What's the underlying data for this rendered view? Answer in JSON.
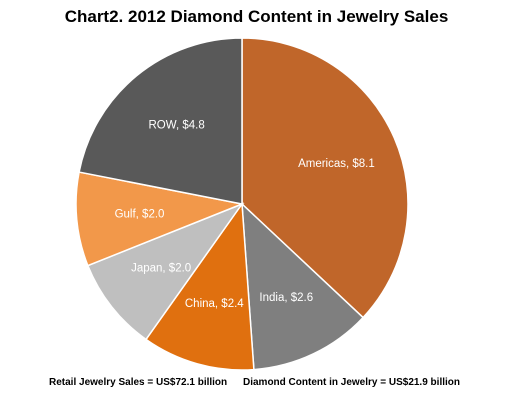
{
  "chart_data": {
    "type": "pie",
    "title": "Chart2. 2012 Diamond Content in Jewelry Sales",
    "slices": [
      {
        "label": "Americas, $8.1",
        "name": "Americas",
        "value": 8.1,
        "color": "#C0662A",
        "text_color": "#ffffff"
      },
      {
        "label": "India, $2.6",
        "name": "India",
        "value": 2.6,
        "color": "#7F7F7F",
        "text_color": "#ffffff"
      },
      {
        "label": "China, $2.4",
        "name": "China",
        "value": 2.4,
        "color": "#E0700F",
        "text_color": "#ffffff"
      },
      {
        "label": "Japan, $2.0",
        "name": "Japan",
        "value": 2.0,
        "color": "#BFBFBF",
        "text_color": "#ffffff"
      },
      {
        "label": "Gulf, $2.0",
        "name": "Gulf",
        "value": 2.0,
        "color": "#F2984A",
        "text_color": "#ffffff"
      },
      {
        "label": "ROW, $4.8",
        "name": "ROW",
        "value": 4.8,
        "color": "#595959",
        "text_color": "#ffffff"
      }
    ],
    "start_angle": "12 o'clock",
    "direction": "clockwise"
  },
  "footer": {
    "left": "Retail Jewelry Sales = US$72.1 billion",
    "right": "Diamond Content in Jewelry = US$21.9 billion"
  }
}
